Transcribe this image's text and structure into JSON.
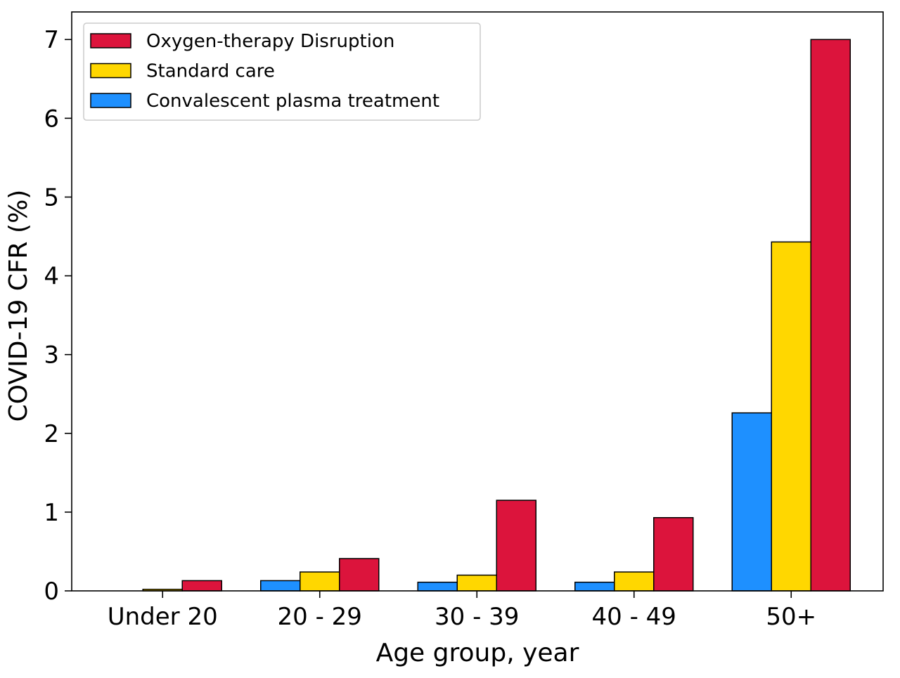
{
  "chart_data": {
    "type": "bar",
    "title": "",
    "xlabel": "Age group, year",
    "ylabel": "COVID-19 CFR (%)",
    "categories": [
      "Under 20",
      "20 - 29",
      "30 - 39",
      "40 - 49",
      "50+"
    ],
    "series": [
      {
        "name": "Convalescent plasma treatment",
        "color": "#1E90FF",
        "values": [
          0.0,
          0.13,
          0.11,
          0.11,
          2.26
        ]
      },
      {
        "name": "Standard care",
        "color": "#FFD700",
        "values": [
          0.02,
          0.24,
          0.2,
          0.24,
          4.43
        ]
      },
      {
        "name": "Oxygen-therapy Disruption",
        "color": "#DC143C",
        "values": [
          0.13,
          0.41,
          1.15,
          0.93,
          7.0
        ]
      }
    ],
    "legend_order": [
      "Oxygen-therapy Disruption",
      "Standard care",
      "Convalescent plasma treatment"
    ],
    "legend_position": "top-left",
    "ylim": [
      0,
      7.35
    ],
    "yticks": [
      "0",
      "1",
      "2",
      "3",
      "4",
      "5",
      "6",
      "7"
    ],
    "grid": false
  }
}
